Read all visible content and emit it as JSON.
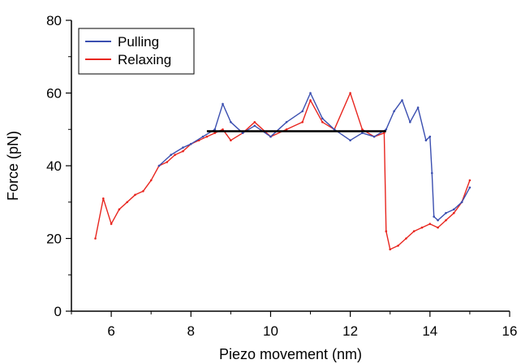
{
  "chart_data": {
    "type": "line",
    "title": "",
    "xlabel": "Piezo movement (nm)",
    "ylabel": "Force (pN)",
    "xlim": [
      5,
      16
    ],
    "ylim": [
      0,
      80
    ],
    "xticks": [
      6,
      8,
      10,
      12,
      14,
      16
    ],
    "yticks": [
      0,
      20,
      40,
      60,
      80
    ],
    "grid": false,
    "legend_position": "top-left",
    "colors": {
      "pulling": "#3b4fb0",
      "relaxing": "#e8261f",
      "plateau": "#000000"
    },
    "series": [
      {
        "name": "Pulling",
        "x": [
          7.2,
          7.5,
          7.8,
          8.0,
          8.3,
          8.6,
          8.8,
          9.0,
          9.3,
          9.6,
          10.0,
          10.4,
          10.8,
          11.0,
          11.3,
          11.6,
          12.0,
          12.3,
          12.6,
          12.9,
          13.1,
          13.3,
          13.5,
          13.7,
          13.9,
          14.0,
          14.05,
          14.1,
          14.2,
          14.4,
          14.6,
          14.8,
          15.0
        ],
        "y": [
          40,
          43,
          45,
          46,
          48,
          50,
          57,
          52,
          49,
          51,
          48,
          52,
          55,
          60,
          53,
          50,
          47,
          49,
          48,
          50,
          55,
          58,
          52,
          56,
          47,
          48,
          38,
          26,
          25,
          27,
          28,
          30,
          34
        ]
      },
      {
        "name": "Relaxing",
        "x": [
          5.6,
          5.8,
          6.0,
          6.2,
          6.4,
          6.6,
          6.8,
          7.0,
          7.2,
          7.4,
          7.6,
          7.8,
          8.0,
          8.2,
          8.4,
          8.6,
          8.8,
          9.0,
          9.3,
          9.6,
          10.0,
          10.4,
          10.8,
          11.0,
          11.3,
          11.6,
          12.0,
          12.3,
          12.6,
          12.85,
          12.9,
          13.0,
          13.2,
          13.4,
          13.6,
          13.8,
          14.0,
          14.2,
          14.4,
          14.6,
          14.8,
          15.0
        ],
        "y": [
          20,
          31,
          24,
          28,
          30,
          32,
          33,
          36,
          40,
          41,
          43,
          44,
          46,
          47,
          48,
          49,
          50,
          47,
          49,
          52,
          48,
          50,
          52,
          58,
          52,
          50,
          60,
          50,
          48,
          49,
          22,
          17,
          18,
          20,
          22,
          23,
          24,
          23,
          25,
          27,
          30,
          36
        ]
      },
      {
        "name": "",
        "x": [
          8.4,
          12.9
        ],
        "y": [
          49.5,
          49.5
        ]
      }
    ],
    "legend": [
      "Pulling",
      "Relaxing"
    ]
  }
}
